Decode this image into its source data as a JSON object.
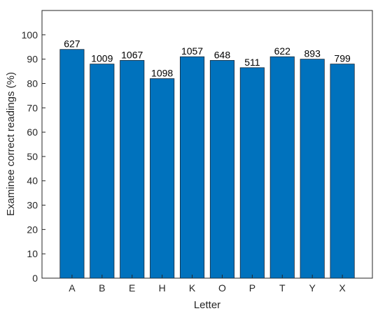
{
  "chart_data": {
    "type": "bar",
    "categories": [
      "A",
      "B",
      "E",
      "H",
      "K",
      "O",
      "P",
      "T",
      "Y",
      "X"
    ],
    "values": [
      94,
      88,
      89.5,
      82,
      91,
      89.5,
      86.5,
      91,
      90,
      88
    ],
    "data_labels": [
      "627",
      "1009",
      "1067",
      "1098",
      "1057",
      "648",
      "511",
      "622",
      "893",
      "799"
    ],
    "xlabel": "Letter",
    "ylabel": "Examinee correct readings (%)",
    "ylim": [
      0,
      110
    ],
    "yticks": [
      0,
      10,
      20,
      30,
      40,
      50,
      60,
      70,
      80,
      90,
      100
    ],
    "grid": false,
    "bar_color": "#0072BD",
    "bar_edge_color": "#1a2a3a"
  }
}
